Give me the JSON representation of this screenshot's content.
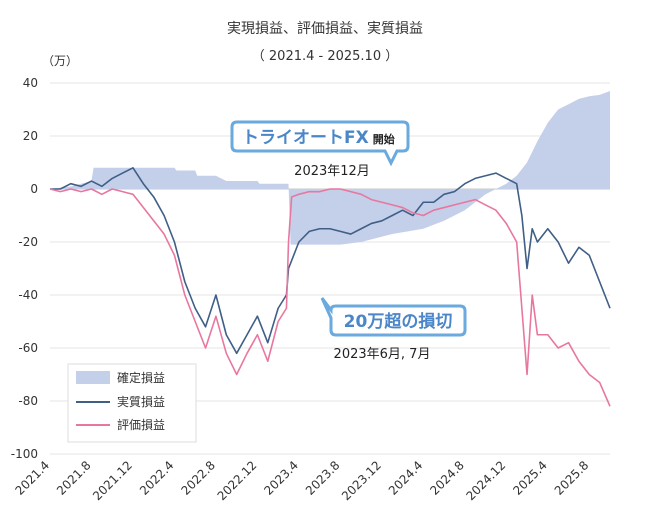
{
  "chart_data": {
    "type": "line",
    "title": "実現損益、評価損益、実質損益",
    "subtitle": "（ 2021.4 - 2025.10 ）",
    "y_unit": "（万）",
    "ylim": [
      -100,
      40
    ],
    "yticks": [
      40,
      20,
      0,
      -20,
      -40,
      -60,
      -80,
      -100
    ],
    "xlim": [
      0,
      54
    ],
    "xtick_labels": [
      "2021.4",
      "2021.8",
      "2021.12",
      "2022.4",
      "2022.8",
      "2022.12",
      "2023.4",
      "2023.8",
      "2023.12",
      "2024.4",
      "2024.8",
      "2024.12",
      "2025.4",
      "2025.8"
    ],
    "grid": "horizontal",
    "legend_position": "bottom-left",
    "series": [
      {
        "name": "確定損益",
        "style": "area",
        "color": "#c4cfea",
        "x": [
          0,
          2,
          3,
          4,
          4.2,
          8,
          9,
          10,
          10.2,
          12,
          12.2,
          14,
          14.2,
          16,
          17,
          17.4,
          20,
          20.2,
          23,
          23.2,
          26,
          26.5,
          28,
          30,
          33,
          36,
          38,
          40,
          41,
          42,
          43,
          44,
          45,
          46,
          47,
          48,
          49,
          50,
          51,
          52,
          53,
          54
        ],
        "y": [
          0,
          1,
          2,
          3,
          8,
          8,
          8,
          8,
          8,
          8,
          7,
          7,
          5,
          5,
          3,
          3,
          3,
          2,
          2,
          -21,
          -21,
          -21,
          -21,
          -20,
          -17,
          -15,
          -12,
          -8,
          -5,
          -2,
          0,
          2,
          5,
          10,
          18,
          25,
          30,
          32,
          34,
          35,
          35.5,
          37
        ]
      },
      {
        "name": "実質損益",
        "style": "line",
        "color": "#3f5f86",
        "x": [
          0,
          1,
          2,
          3,
          4,
          5,
          6,
          7,
          8,
          9,
          10,
          11,
          12,
          13,
          14,
          15,
          16,
          17,
          18,
          19,
          20,
          21,
          22,
          22.8,
          23,
          24,
          25,
          26,
          27,
          28,
          29,
          30,
          31,
          32,
          33,
          34,
          35,
          36,
          37,
          38,
          39,
          40,
          41,
          42,
          43,
          44,
          45,
          45.5,
          46,
          46.5,
          47,
          48,
          49,
          50,
          51,
          52,
          53,
          54
        ],
        "y": [
          0,
          0,
          2,
          1,
          3,
          1,
          4,
          6,
          8,
          2,
          -3,
          -10,
          -20,
          -35,
          -45,
          -52,
          -40,
          -55,
          -62,
          -55,
          -48,
          -58,
          -45,
          -40,
          -30,
          -20,
          -16,
          -15,
          -15,
          -16,
          -17,
          -15,
          -13,
          -12,
          -10,
          -8,
          -10,
          -5,
          -5,
          -2,
          -1,
          2,
          4,
          5,
          6,
          4,
          2,
          -10,
          -30,
          -15,
          -20,
          -15,
          -20,
          -28,
          -22,
          -25,
          -35,
          -45
        ]
      },
      {
        "name": "評価損益",
        "style": "line",
        "color": "#e8779f",
        "x": [
          0,
          1,
          2,
          3,
          4,
          5,
          6,
          7,
          8,
          9,
          10,
          11,
          12,
          13,
          14,
          15,
          16,
          17,
          18,
          19,
          20,
          21,
          22,
          22.8,
          23,
          23.3,
          24,
          25,
          26,
          27,
          28,
          29,
          30,
          31,
          32,
          33,
          34,
          35,
          36,
          37,
          38,
          39,
          40,
          41,
          42,
          43,
          44,
          45,
          45.5,
          46,
          46.5,
          47,
          48,
          49,
          50,
          51,
          52,
          53,
          54
        ],
        "y": [
          0,
          -1,
          0,
          -1,
          0,
          -2,
          0,
          -1,
          -2,
          -7,
          -12,
          -17,
          -25,
          -40,
          -50,
          -60,
          -48,
          -62,
          -70,
          -62,
          -55,
          -65,
          -50,
          -45,
          -20,
          -3,
          -2,
          -1,
          -1,
          0,
          0,
          -1,
          -2,
          -4,
          -5,
          -6,
          -7,
          -9,
          -10,
          -8,
          -7,
          -6,
          -5,
          -4,
          -6,
          -8,
          -13,
          -20,
          -45,
          -70,
          -40,
          -55,
          -55,
          -60,
          -58,
          -65,
          -70,
          -73,
          -82
        ]
      }
    ],
    "annotations": [
      {
        "callout": "トライオートFX",
        "callout_suffix": "開始",
        "label": "2023年12月"
      },
      {
        "callout": "20万超の損切",
        "label": "2023年6月, 7月"
      }
    ]
  }
}
